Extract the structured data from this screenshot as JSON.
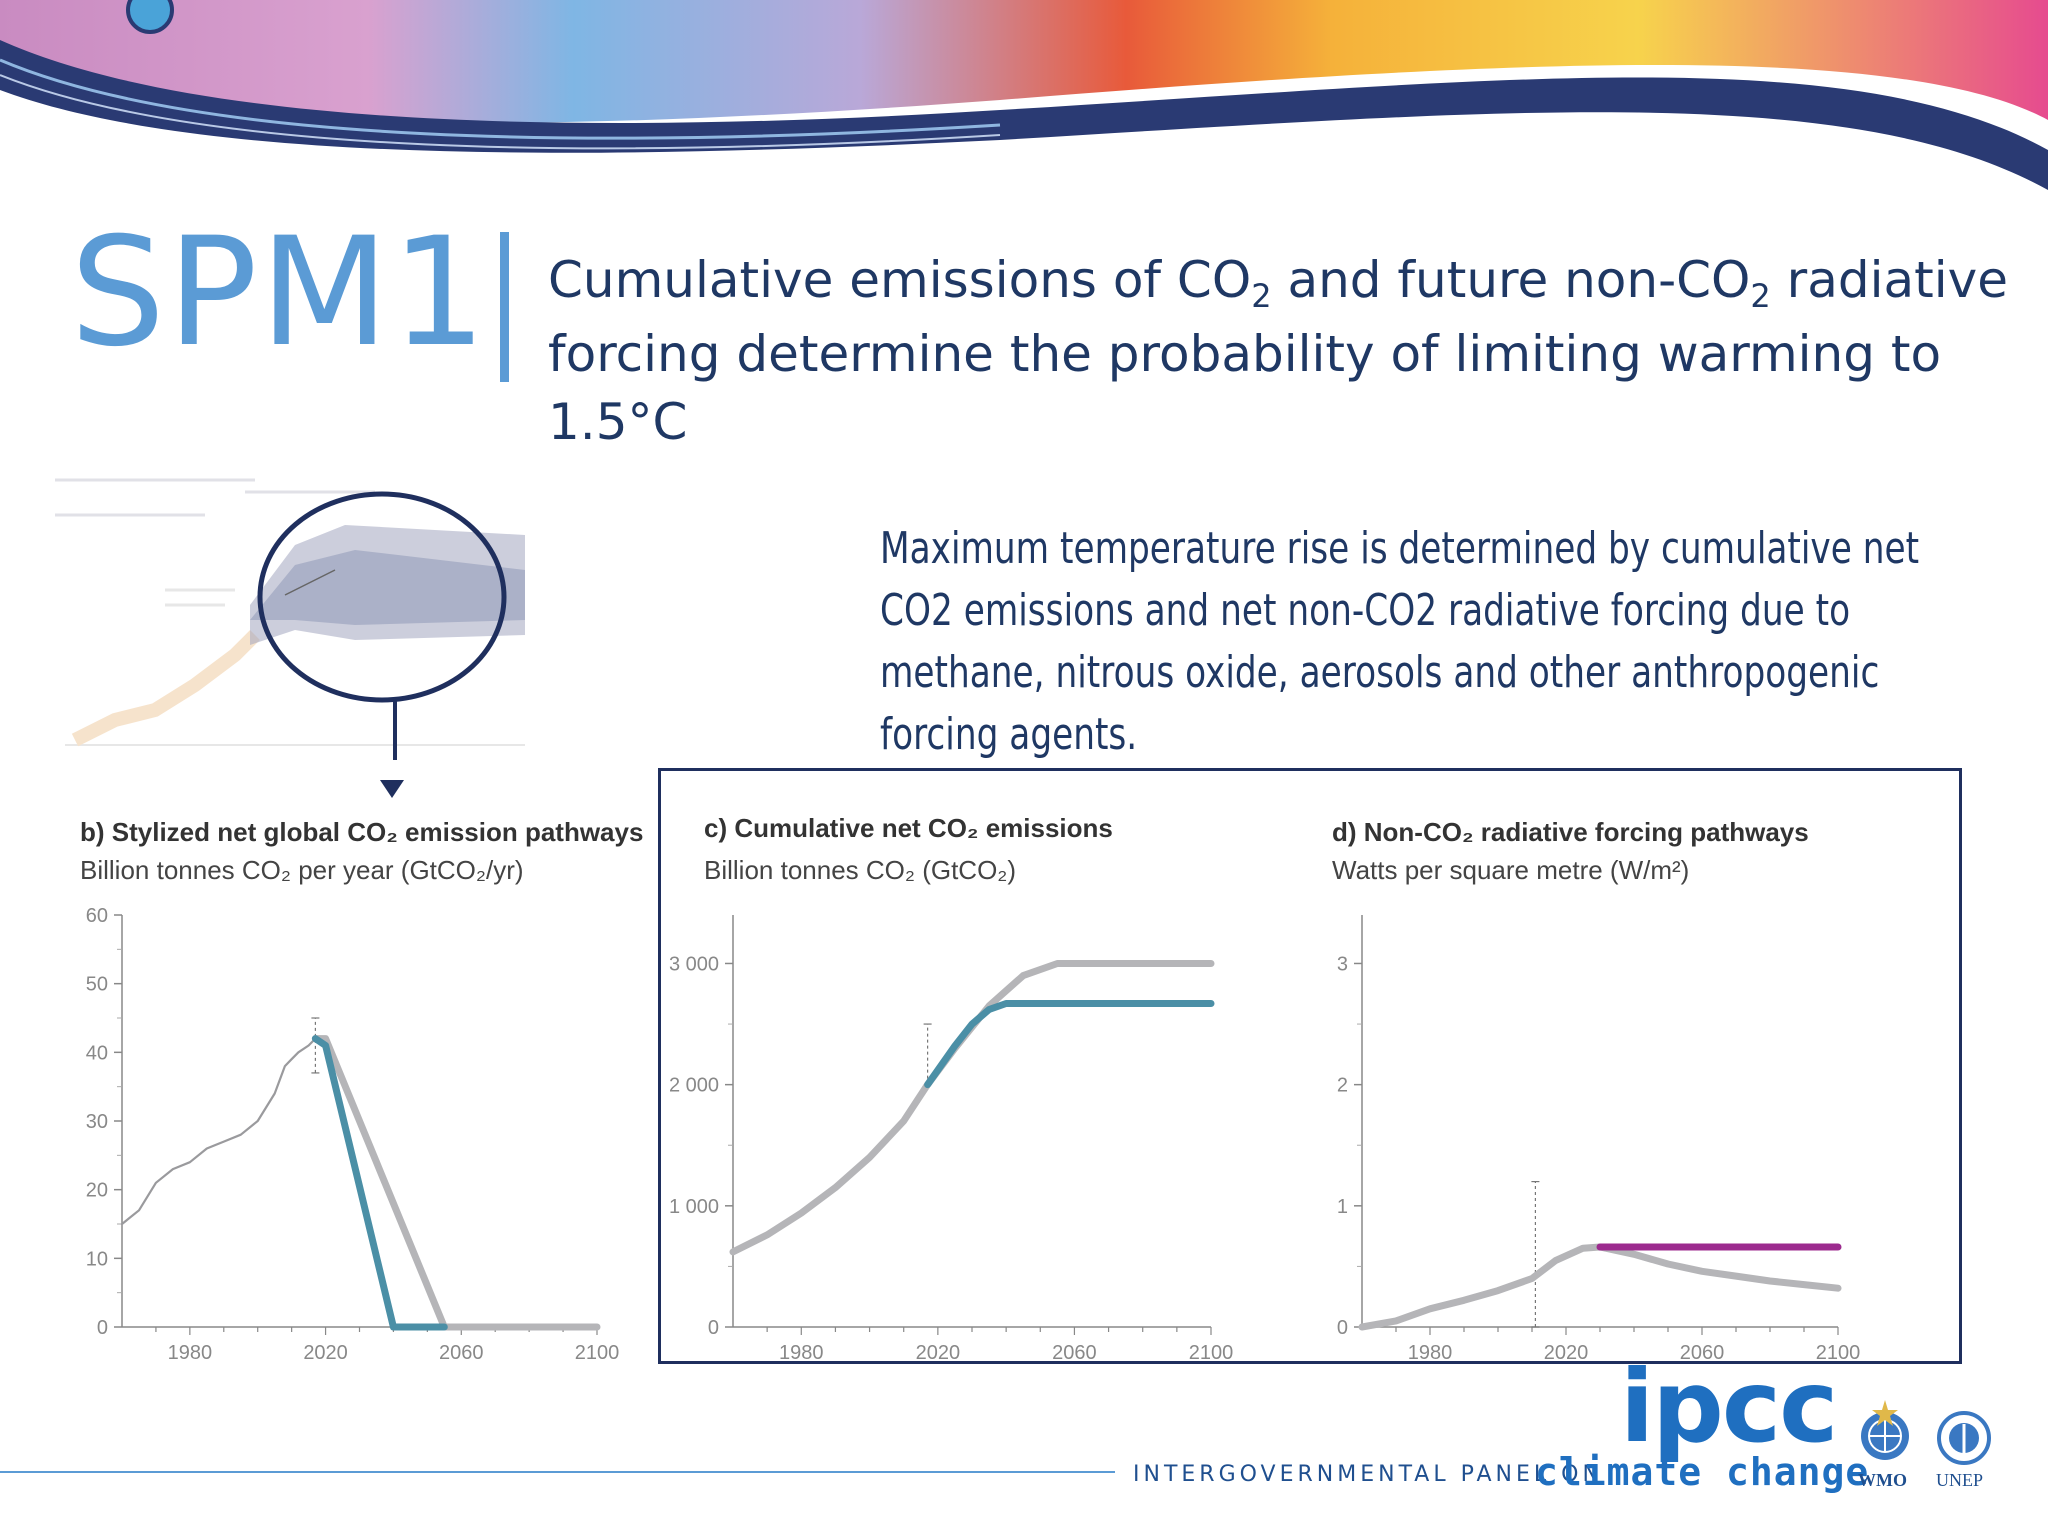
{
  "slide": {
    "code": "SPM1",
    "headline_line1_a": "Cumulative emissions of CO",
    "headline_line1_sub": "2",
    "headline_line1_b": " and future non-CO",
    "headline_line1_sub2": "2",
    "headline_line1_c": " radiative",
    "headline_line2": "forcing determine the probability of limiting warming to 1.5°C",
    "note": "Maximum temperature rise is determined by cumulative net CO2 emissions and net non-CO2 radiative forcing due to methane, nitrous oxide, aerosols and other anthropogenic forcing agents."
  },
  "footer": {
    "org": "INTERGOVERNMENTAL PANEL ON",
    "climate_change": "climate change",
    "ipcc": "ipcc",
    "wmo": "WMO",
    "unep": "UNEP"
  },
  "colors": {
    "accent": "#5b9bd5",
    "navy": "#1f3864",
    "grey_line": "#b5b5b8",
    "teal_line": "#4b8fa6",
    "magenta_line": "#9c2a8e"
  },
  "chart_data": [
    {
      "panel": "b",
      "type": "line",
      "title": "b) Stylized net global CO₂ emission pathways",
      "subtitle": "Billion tonnes CO₂ per year (GtCO₂/yr)",
      "xlim": [
        1960,
        2100
      ],
      "ylim": [
        0,
        60
      ],
      "xticks": [
        1980,
        2020,
        2060,
        2100
      ],
      "yticks": [
        0,
        10,
        20,
        30,
        40,
        50,
        60
      ],
      "series": [
        {
          "color": "#9a9a9d",
          "style": "thin",
          "x": [
            1960,
            1965,
            1970,
            1975,
            1980,
            1985,
            1990,
            1995,
            2000,
            2005,
            2008,
            2010,
            2012,
            2015,
            2017
          ],
          "y": [
            15,
            17,
            21,
            23,
            24,
            26,
            27,
            28,
            30,
            34,
            38,
            39,
            40,
            41,
            42
          ]
        },
        {
          "color": "#b5b5b8",
          "style": "thick",
          "x": [
            2017,
            2020,
            2055,
            2100
          ],
          "y": [
            42,
            42,
            0,
            0
          ]
        },
        {
          "color": "#4b8fa6",
          "style": "thick",
          "x": [
            2017,
            2020,
            2040,
            2055
          ],
          "y": [
            42,
            41,
            0,
            0
          ]
        }
      ],
      "error_bar": {
        "x": 2017,
        "low": 37,
        "high": 45
      }
    },
    {
      "panel": "c",
      "type": "line",
      "title": "c) Cumulative net CO₂ emissions",
      "subtitle": "Billion tonnes CO₂ (GtCO₂)",
      "xlim": [
        1960,
        2100
      ],
      "ylim": [
        0,
        3400
      ],
      "xticks": [
        1980,
        2020,
        2060,
        2100
      ],
      "yticks": [
        0,
        1000,
        2000,
        3000
      ],
      "ytick_labels": [
        "0",
        "1 000",
        "2 000",
        "3 000"
      ],
      "series": [
        {
          "color": "#b5b5b8",
          "style": "thick",
          "x": [
            1960,
            1970,
            1980,
            1990,
            2000,
            2010,
            2017,
            2025,
            2035,
            2045,
            2055,
            2100
          ],
          "y": [
            620,
            760,
            940,
            1150,
            1400,
            1700,
            2000,
            2300,
            2650,
            2900,
            3000,
            3000
          ]
        },
        {
          "color": "#4b8fa6",
          "style": "thick",
          "x": [
            2017,
            2025,
            2030,
            2035,
            2040,
            2100
          ],
          "y": [
            2000,
            2320,
            2500,
            2620,
            2670,
            2670
          ]
        }
      ],
      "error_bar": {
        "x": 2017,
        "low": 2000,
        "high": 2500
      }
    },
    {
      "panel": "d",
      "type": "line",
      "title": "d) Non-CO₂ radiative forcing pathways",
      "subtitle": "Watts per square metre (W/m²)",
      "xlim": [
        1960,
        2100
      ],
      "ylim": [
        0,
        3.4
      ],
      "xticks": [
        1980,
        2020,
        2060,
        2100
      ],
      "yticks": [
        0,
        1,
        2,
        3
      ],
      "series": [
        {
          "color": "#b5b5b8",
          "style": "thick",
          "x": [
            1960,
            1970,
            1980,
            1990,
            2000,
            2010,
            2017,
            2025,
            2030,
            2040,
            2050,
            2060,
            2070,
            2080,
            2090,
            2100
          ],
          "y": [
            0,
            0.05,
            0.15,
            0.22,
            0.3,
            0.4,
            0.55,
            0.65,
            0.66,
            0.6,
            0.52,
            0.46,
            0.42,
            0.38,
            0.35,
            0.32
          ]
        },
        {
          "color": "#9c2a8e",
          "style": "thick",
          "x": [
            2030,
            2100
          ],
          "y": [
            0.66,
            0.66
          ]
        }
      ],
      "error_bar": {
        "x": 2011,
        "low": 0.0,
        "high": 1.2
      }
    }
  ]
}
